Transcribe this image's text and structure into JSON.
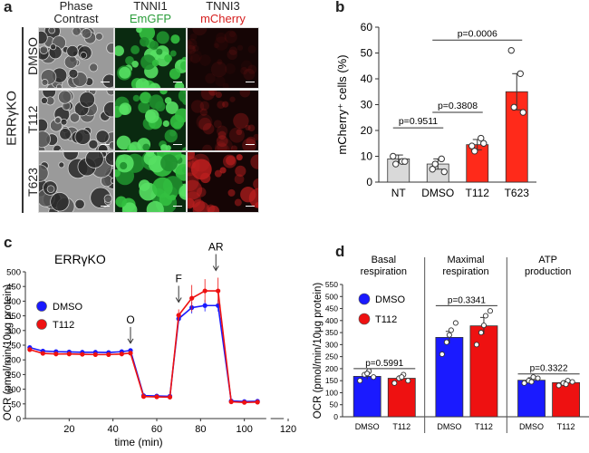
{
  "panel_a": {
    "label": "a",
    "columns": [
      {
        "line1": "Phase",
        "line2": "Contrast",
        "color": "#222222"
      },
      {
        "line1": "TNNI1",
        "line2": "EmGFP",
        "color": "#2a9d3a"
      },
      {
        "line1": "TNNI3",
        "line2": "mCherry",
        "color": "#d62020"
      }
    ],
    "group_label": "ERRγKO",
    "rows": [
      "DMSO",
      "T112",
      "T623"
    ]
  },
  "chart_data": [
    {
      "id": "b",
      "panel_label": "b",
      "type": "bar",
      "ylabel": "mCherry⁺ cells (%)",
      "ylim": [
        0,
        60
      ],
      "yticks": [
        0,
        10,
        20,
        30,
        40,
        50,
        60
      ],
      "categories": [
        "NT",
        "DMSO",
        "T112",
        "T623"
      ],
      "values": [
        9,
        7,
        14.5,
        35
      ],
      "errors": [
        1.5,
        2,
        2,
        7
      ],
      "bar_colors": [
        "#d9d9d9",
        "#d9d9d9",
        "#ff2a1a",
        "#ff2a1a"
      ],
      "points": [
        [
          10,
          8,
          7,
          8
        ],
        [
          5,
          9,
          7,
          4
        ],
        [
          14,
          17,
          12,
          15
        ],
        [
          51,
          42,
          29,
          27
        ]
      ],
      "comparisons": [
        {
          "from": 0,
          "to": 1,
          "label": "p=0.9511",
          "y": 21
        },
        {
          "from": 1,
          "to": 2,
          "label": "p=0.3808",
          "y": 27
        },
        {
          "from": 1,
          "to": 3,
          "label": "p=0.0006",
          "y": 55
        }
      ]
    },
    {
      "id": "c",
      "panel_label": "c",
      "type": "line",
      "title": "ERRγKO",
      "xlabel": "time (min)",
      "ylabel": "OCR (pmol/min/10μg protein)",
      "xlim": [
        0,
        120
      ],
      "ylim": [
        0,
        500
      ],
      "xticks": [
        20,
        40,
        60,
        80,
        100,
        120
      ],
      "yticks": [
        0,
        50,
        100,
        150,
        200,
        250,
        300,
        350,
        400,
        450,
        500
      ],
      "x": [
        2,
        8,
        14,
        20,
        26,
        32,
        38,
        44,
        48,
        54,
        60,
        66,
        70,
        76,
        82,
        88,
        94,
        100,
        106
      ],
      "series": [
        {
          "name": "DMSO",
          "color": "#1a1aff",
          "values": [
            242,
            230,
            228,
            227,
            226,
            226,
            225,
            228,
            232,
            78,
            77,
            76,
            340,
            378,
            385,
            385,
            60,
            58,
            59
          ],
          "errors": [
            8,
            6,
            6,
            6,
            6,
            6,
            6,
            6,
            6,
            5,
            5,
            5,
            15,
            20,
            20,
            20,
            5,
            5,
            5
          ]
        },
        {
          "name": "T112",
          "color": "#ee1111",
          "values": [
            235,
            222,
            220,
            220,
            219,
            218,
            218,
            220,
            223,
            75,
            74,
            73,
            352,
            410,
            435,
            435,
            57,
            55,
            56
          ],
          "errors": [
            8,
            6,
            6,
            6,
            6,
            6,
            6,
            6,
            6,
            5,
            5,
            5,
            20,
            45,
            40,
            45,
            5,
            5,
            5
          ]
        }
      ],
      "annotations": [
        {
          "label": "O",
          "x": 48
        },
        {
          "label": "F",
          "x": 70
        },
        {
          "label": "AR",
          "x": 87
        }
      ]
    },
    {
      "id": "d",
      "panel_label": "d",
      "type": "bar",
      "ylabel": "OCR (pmol/min/10μg protein)",
      "ylim": [
        0,
        550
      ],
      "yticks": [
        0,
        50,
        100,
        150,
        200,
        250,
        300,
        350,
        400,
        450,
        500,
        550
      ],
      "legend": [
        {
          "name": "DMSO",
          "color": "#1a1aff"
        },
        {
          "name": "T112",
          "color": "#ee1111"
        }
      ],
      "groups": [
        {
          "title_line1": "Basal",
          "title_line2": "respiration",
          "categories": [
            "DMSO",
            "T112"
          ],
          "values": [
            168,
            160
          ],
          "errors": [
            12,
            10
          ],
          "p_label": "p=0.5991",
          "p_y": 200,
          "points": [
            [
              150,
              175,
              190,
              165,
              180
            ],
            [
              140,
              160,
              175,
              150,
              165
            ]
          ]
        },
        {
          "title_line1": "Maximal",
          "title_line2": "respiration",
          "categories": [
            "DMSO",
            "T112"
          ],
          "values": [
            330,
            378
          ],
          "errors": [
            25,
            35
          ],
          "p_label": "p=0.3341",
          "p_y": 462,
          "points": [
            [
              260,
              310,
              360,
              390,
              340
            ],
            [
              300,
              350,
              420,
              440,
              380
            ]
          ]
        },
        {
          "title_line1": "ATP",
          "title_line2": "production",
          "categories": [
            "DMSO",
            "T112"
          ],
          "values": [
            152,
            142
          ],
          "errors": [
            10,
            8
          ],
          "p_label": "p=0.3322",
          "p_y": 178,
          "points": [
            [
              140,
              150,
              165,
              160,
              145
            ],
            [
              130,
              140,
              150,
              145,
              135
            ]
          ]
        }
      ]
    }
  ]
}
